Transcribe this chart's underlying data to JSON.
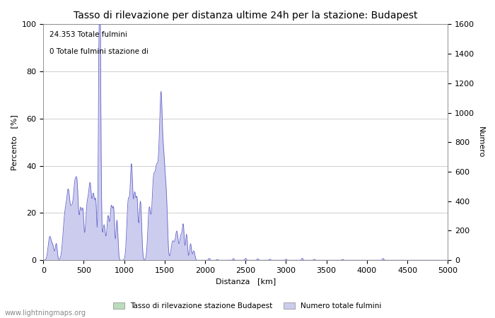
{
  "title": "Tasso di rilevazione per distanza ultime 24h per la stazione: Budapest",
  "xlabel": "Distanza   [km]",
  "ylabel_left": "Percento   [%]",
  "ylabel_right": "Numero",
  "annotation_line1": "24.353 Totale fulmini",
  "annotation_line2": "0 Totale fulmini stazione di",
  "xlim": [
    0,
    5000
  ],
  "ylim_left": [
    0,
    100
  ],
  "ylim_right": [
    0,
    1600
  ],
  "xticks": [
    0,
    500,
    1000,
    1500,
    2000,
    2500,
    3000,
    3500,
    4000,
    4500,
    5000
  ],
  "yticks_left": [
    0,
    20,
    40,
    60,
    80,
    100
  ],
  "yticks_right": [
    0,
    200,
    400,
    600,
    800,
    1000,
    1200,
    1400,
    1600
  ],
  "legend_label_green": "Tasso di rilevazione stazione Budapest",
  "legend_label_blue": "Numero totale fulmini",
  "line_color": "#6666cc",
  "fill_color_blue": "#ccccee",
  "fill_color_green": "#bbddbb",
  "watermark": "www.lightningmaps.org",
  "title_fontsize": 10,
  "axis_fontsize": 8,
  "tick_fontsize": 8
}
